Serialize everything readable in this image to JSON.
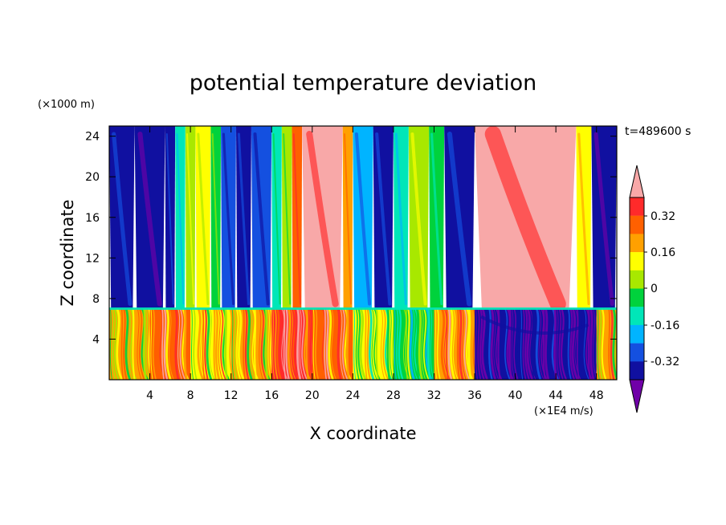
{
  "chart_data": {
    "type": "heatmap",
    "title": "potential temperature deviation",
    "xlabel": "X coordinate",
    "ylabel": "Z coordinate",
    "x_unit": "(×1E4 m/s)",
    "y_unit": "(×1000 m)",
    "time_label": "t=489600 s",
    "xlim": [
      0,
      50
    ],
    "ylim": [
      0,
      25
    ],
    "x_ticks": [
      "4",
      "8",
      "12",
      "16",
      "20",
      "24",
      "28",
      "32",
      "36",
      "40",
      "44",
      "48"
    ],
    "y_ticks": [
      "4",
      "8",
      "12",
      "16",
      "20",
      "24"
    ],
    "colorbar": {
      "labels": [
        "0.32",
        "0.16",
        "0",
        "-0.16",
        "-0.32"
      ],
      "levels": [
        -0.4,
        -0.32,
        -0.24,
        -0.16,
        -0.08,
        0,
        0.08,
        0.16,
        0.24,
        0.32,
        0.4
      ],
      "colors": [
        "#7000A8",
        "#1010A0",
        "#1450E0",
        "#00B4FF",
        "#00E6B8",
        "#00D23C",
        "#A8E800",
        "#FFFF00",
        "#FFA000",
        "#FF6000",
        "#FF2A2A",
        "#F8A8A8"
      ]
    },
    "upper_bands": [
      {
        "x": [
          0,
          2.5
        ],
        "value": -0.34
      },
      {
        "x": [
          2.5,
          5.5
        ],
        "value": -0.4
      },
      {
        "x": [
          5.5,
          6.5
        ],
        "value": -0.34
      },
      {
        "x": [
          6.5,
          7.5
        ],
        "value": -0.16
      },
      {
        "x": [
          7.5,
          8.5
        ],
        "value": 0.02
      },
      {
        "x": [
          8.5,
          10.0
        ],
        "value": 0.12
      },
      {
        "x": [
          10.0,
          11.0
        ],
        "value": -0.02
      },
      {
        "x": [
          11.0,
          12.5
        ],
        "value": -0.28
      },
      {
        "x": [
          12.5,
          14.0
        ],
        "value": -0.4
      },
      {
        "x": [
          14.0,
          16.0
        ],
        "value": -0.32
      },
      {
        "x": [
          16.0,
          17.0
        ],
        "value": -0.16
      },
      {
        "x": [
          17.0,
          18.0
        ],
        "value": 0.04
      },
      {
        "x": [
          18.0,
          19.0
        ],
        "value": 0.24
      },
      {
        "x": [
          19.0,
          23.0
        ],
        "value": 0.42
      },
      {
        "x": [
          23.0,
          24.0
        ],
        "value": 0.18
      },
      {
        "x": [
          24.0,
          26.0
        ],
        "value": -0.24
      },
      {
        "x": [
          26.0,
          28.0
        ],
        "value": -0.4
      },
      {
        "x": [
          28.0,
          29.5
        ],
        "value": -0.16
      },
      {
        "x": [
          29.5,
          31.5
        ],
        "value": 0.02
      },
      {
        "x": [
          31.5,
          33.0
        ],
        "value": -0.08
      },
      {
        "x": [
          33.0,
          36.0
        ],
        "value": -0.4
      },
      {
        "x": [
          36.0,
          46.0
        ],
        "value": 0.42
      },
      {
        "x": [
          46.0,
          47.5
        ],
        "value": 0.08
      },
      {
        "x": [
          47.5,
          50.0
        ],
        "value": -0.4
      }
    ],
    "lower_regions": [
      {
        "x": [
          0,
          4
        ],
        "value": 0.18
      },
      {
        "x": [
          4,
          8
        ],
        "value": 0.3
      },
      {
        "x": [
          8,
          12
        ],
        "value": 0.12
      },
      {
        "x": [
          12,
          16
        ],
        "value": 0.2
      },
      {
        "x": [
          16,
          20
        ],
        "value": 0.34
      },
      {
        "x": [
          20,
          24
        ],
        "value": 0.26
      },
      {
        "x": [
          24,
          28
        ],
        "value": 0.1
      },
      {
        "x": [
          28,
          32
        ],
        "value": -0.04
      },
      {
        "x": [
          32,
          36
        ],
        "value": 0.22
      },
      {
        "x": [
          36,
          48
        ],
        "value": -0.4
      },
      {
        "x": [
          48,
          50
        ],
        "value": 0.16
      }
    ],
    "layer_interface_z": 7
  }
}
